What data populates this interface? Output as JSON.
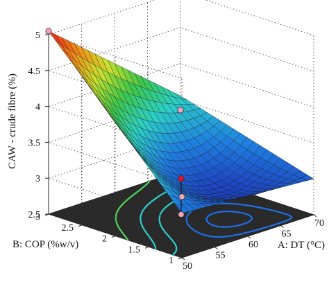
{
  "chart_data": {
    "type": "surface3d",
    "title": "",
    "zlabel": "CAW - crude fibre (%)",
    "xlabel": "A: DT (°C)",
    "ylabel": "B: COP (%w/v)",
    "x_range": [
      50,
      70
    ],
    "y_range": [
      1,
      3
    ],
    "z_range": [
      2.5,
      5
    ],
    "x_ticks": [
      "50",
      "55",
      "60",
      "65",
      "70"
    ],
    "y_ticks": [
      "1",
      "1.5",
      "2",
      "2.5",
      "3"
    ],
    "z_ticks": [
      "2.5",
      "3",
      "3.5",
      "4",
      "4.5",
      "5"
    ],
    "surface": {
      "grid_size": 21,
      "z_at_x50_y1": 3.12,
      "z_at_x70_y1": 3.0,
      "z_at_x50_y3": 5.05,
      "z_at_x70_y3": 3.55,
      "z_at_center": 3.05,
      "z_minimum": 2.8,
      "colormap": [
        "#1d3fbf",
        "#1f7fe0",
        "#2ccfc8",
        "#3cc64a",
        "#c9e02e",
        "#f08a18",
        "#e61c10"
      ]
    },
    "design_points": [
      {
        "x": 60,
        "y": 2,
        "z": 3.0,
        "color": "#e0102a",
        "role": "center point above surface"
      },
      {
        "x": 50,
        "y": 3,
        "z": 5.05,
        "color": "#f4a3b8"
      },
      {
        "x": 70,
        "y": 3,
        "z": 3.35,
        "color": "#f4a3b8"
      },
      {
        "x": 50,
        "y": 1,
        "z": 3.35,
        "color": "#f4a3b8"
      },
      {
        "x": 60,
        "y": 2,
        "z": 2.5,
        "color": "#f4a3b8",
        "role": "floor projection"
      }
    ],
    "floor_contours": {
      "background": "#2a2a2a",
      "line_colors": [
        "#1f6fe8",
        "#2fd0d0",
        "#52d65a"
      ]
    },
    "grid": true
  }
}
